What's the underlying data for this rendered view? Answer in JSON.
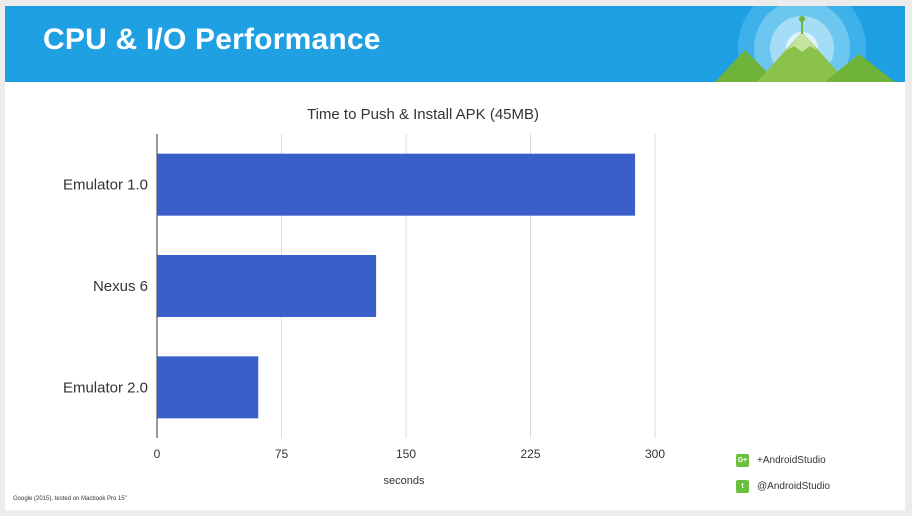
{
  "header": {
    "title": "CPU & I/O Performance"
  },
  "chart_data": {
    "type": "bar",
    "orientation": "horizontal",
    "title": "Time to Push & Install APK (45MB)",
    "xlabel": "seconds",
    "ylabel": "",
    "categories": [
      "Emulator 1.0",
      "Nexus 6",
      "Emulator 2.0"
    ],
    "values": [
      288,
      132,
      61
    ],
    "xlim": [
      0,
      300
    ],
    "xticks": [
      0,
      75,
      150,
      225,
      300
    ],
    "grid": true,
    "bar_color": "#3b5fc9"
  },
  "footnote": "Google (2015), tested on Macbook Pro 15\"",
  "social": [
    {
      "icon": "google-plus-icon",
      "glyph": "G+",
      "text": "+AndroidStudio"
    },
    {
      "icon": "twitter-icon",
      "glyph": "t",
      "text": "@AndroidStudio"
    }
  ]
}
